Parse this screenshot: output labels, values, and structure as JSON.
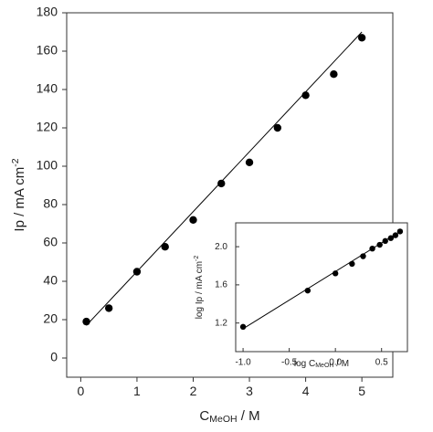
{
  "chart_data": [
    {
      "type": "scatter",
      "xlabel": [
        {
          "text": "C"
        },
        {
          "text": "MeOH",
          "shift": "sub"
        },
        {
          "text": "  / M"
        }
      ],
      "ylabel": [
        {
          "text": "Ip / mA cm"
        },
        {
          "text": "-2",
          "shift": "super"
        }
      ],
      "xlim": [
        -0.25,
        5.55
      ],
      "ylim": [
        -10,
        180
      ],
      "xticks": [
        0,
        1,
        2,
        3,
        4,
        5
      ],
      "yticks": [
        0,
        20,
        40,
        60,
        80,
        100,
        120,
        140,
        160,
        180
      ],
      "series": [
        {
          "style": "markers",
          "color": "#000000",
          "x": [
            0.1,
            0.5,
            1,
            1.5,
            2,
            2.5,
            3,
            3.5,
            4,
            4.5,
            5
          ],
          "values": [
            19,
            26,
            45,
            58,
            72,
            91,
            102,
            120,
            137,
            148,
            167
          ]
        },
        {
          "style": "line",
          "color": "#000000",
          "x": [
            0.1,
            5
          ],
          "values": [
            17,
            170
          ]
        }
      ]
    },
    {
      "type": "scatter",
      "xlabel": [
        {
          "text": "log C"
        },
        {
          "text": "MeOH",
          "shift": "sub"
        },
        {
          "text": " / M"
        }
      ],
      "ylabel": [
        {
          "text": "log Ip / mA cm"
        },
        {
          "text": "-2",
          "shift": "super"
        }
      ],
      "xlim": [
        -1.08,
        0.78
      ],
      "ylim": [
        0.9,
        2.25
      ],
      "xticks": [
        {
          "value": -1,
          "label": "-1.0"
        },
        -0.5,
        {
          "value": 0,
          "label": "0.0"
        },
        0.5
      ],
      "yticks": [
        1.2,
        1.6,
        {
          "value": 2,
          "label": "2.0"
        }
      ],
      "series": [
        {
          "style": "markers",
          "color": "#000000",
          "x": [
            -1,
            -0.3,
            0,
            0.18,
            0.3,
            0.4,
            0.48,
            0.54,
            0.6,
            0.65,
            0.7
          ],
          "values": [
            1.16,
            1.54,
            1.72,
            1.82,
            1.9,
            1.98,
            2.02,
            2.06,
            2.09,
            2.12,
            2.16
          ]
        },
        {
          "style": "line",
          "color": "#000000",
          "x": [
            -1,
            0.7
          ],
          "values": [
            1.14,
            2.16
          ]
        }
      ]
    }
  ]
}
